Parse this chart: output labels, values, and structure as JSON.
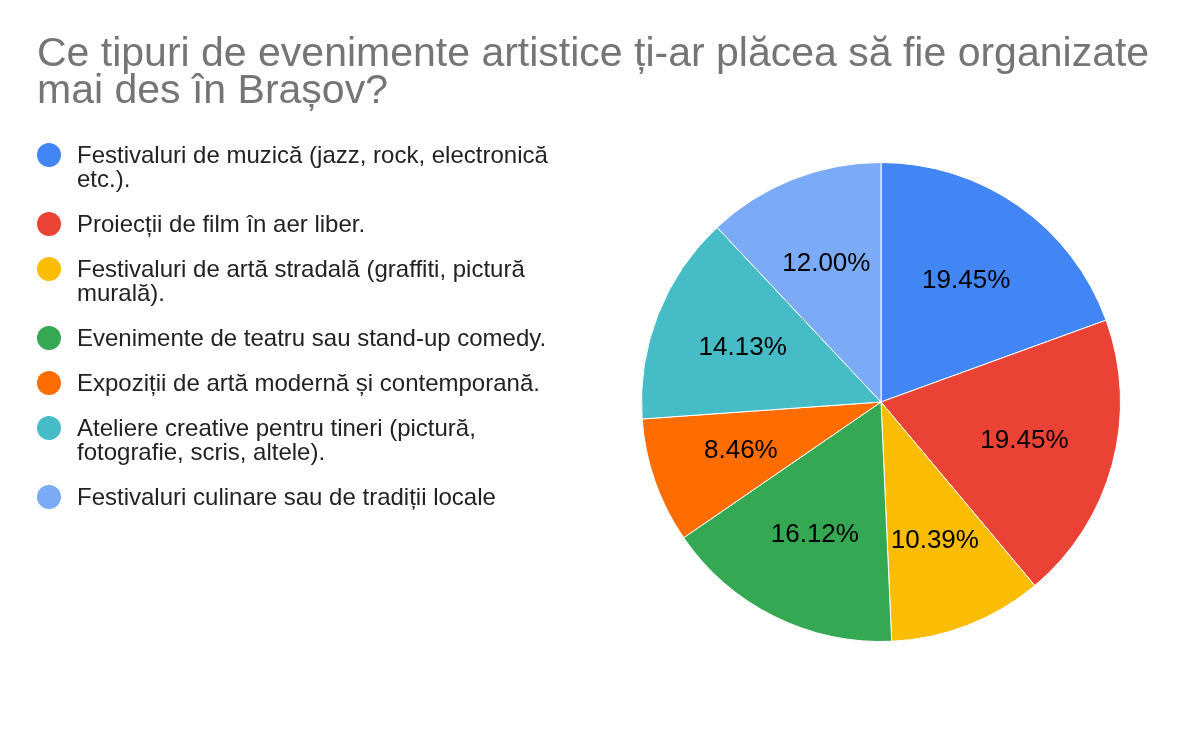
{
  "chart_data": {
    "type": "pie",
    "title": "Ce tipuri de evenimente artistice ți-ar plăcea să fie organizate mai des în Brașov?",
    "categories": [
      "Festivaluri de muzică (jazz, rock, electronică etc.).",
      "Proiecții de film în aer liber.",
      "Festivaluri de artă stradală (graffiti, pictură murală).",
      "Evenimente de teatru sau stand-up comedy.",
      "Expoziții de artă modernă și contemporană.",
      "Ateliere creative pentru tineri (pictură, fotografie, scris, altele).",
      "Festivaluri culinare sau de tradiții locale"
    ],
    "values": [
      19.45,
      19.45,
      10.39,
      16.12,
      8.46,
      14.13,
      12.0
    ],
    "colors": [
      "#4285f4",
      "#ea4335",
      "#fbbc04",
      "#34a853",
      "#ff6d01",
      "#46bdc6",
      "#7baaf7"
    ],
    "value_labels": [
      "19.45%",
      "19.45%",
      "10.39%",
      "16.12%",
      "8.46%",
      "14.13%",
      "12.00%"
    ],
    "legend": "left"
  }
}
